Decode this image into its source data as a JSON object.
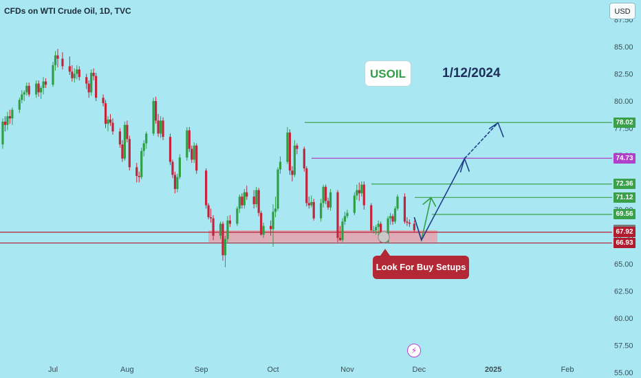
{
  "header": {
    "title": "CFDs on WTI Crude Oil, 1D, TVC",
    "currency_button": "USD"
  },
  "annotations": {
    "symbol": "USOIL",
    "date": "1/12/2024",
    "callout": "Look For Buy Setups",
    "icon": "lightning-icon"
  },
  "colors": {
    "background": "#a9e8f2",
    "up_candle": "#2f9e44",
    "down_candle": "#c2253a",
    "green_level": "#3aa04a",
    "purple_level": "#b23fc9",
    "dark_red_level": "#b31c2e",
    "gray_tag": "#777777",
    "navy": "#1e3d8a",
    "zone": "#e8a0ad"
  },
  "chart_data": {
    "type": "candlestick",
    "x_ticks": [
      "Jul",
      "Aug",
      "Sep",
      "Oct",
      "Nov",
      "Dec",
      "2025",
      "Feb"
    ],
    "y_ticks": [
      "55.00",
      "57.50",
      "60.00",
      "62.50",
      "65.00",
      "67.50",
      "70.00",
      "72.50",
      "75.00",
      "77.50",
      "80.00",
      "82.50",
      "85.00",
      "87.50"
    ],
    "ylim": [
      54.5,
      89.3
    ],
    "price_levels": [
      {
        "label": "78.02",
        "value": 78.02,
        "color": "green"
      },
      {
        "label": "74.73",
        "value": 74.73,
        "color": "purple"
      },
      {
        "label": "72.36",
        "value": 72.36,
        "color": "green"
      },
      {
        "label": "71.12",
        "value": 71.12,
        "color": "green"
      },
      {
        "label": "69.56",
        "value": 69.56,
        "color": "green"
      },
      {
        "label": "68.11",
        "value": 68.11,
        "color": "gray"
      },
      {
        "label": "67.92",
        "value": 67.92,
        "color": "dark_red"
      },
      {
        "label": "66.93",
        "value": 66.93,
        "color": "dark_red"
      }
    ],
    "support_zone": [
      67.0,
      68.1
    ],
    "projection": [
      {
        "date": "2024-11-29",
        "price": 69.3
      },
      {
        "date": "2024-12-02",
        "price": 67.2
      },
      {
        "date": "2024-12-06",
        "price": 71.1
      },
      {
        "date": "2024-12-20",
        "price": 74.7
      },
      {
        "date": "2025-01-03",
        "price": 78.0
      }
    ],
    "candles": [
      [
        "2024-06-10",
        76.0,
        78.4,
        75.6,
        78.1
      ],
      [
        "2024-06-11",
        78.1,
        78.6,
        77.2,
        77.8
      ],
      [
        "2024-06-12",
        77.8,
        79.0,
        77.3,
        78.6
      ],
      [
        "2024-06-13",
        78.6,
        79.2,
        77.9,
        78.4
      ],
      [
        "2024-06-14",
        78.4,
        79.4,
        77.8,
        79.2
      ],
      [
        "2024-06-17",
        79.2,
        80.3,
        78.9,
        80.1
      ],
      [
        "2024-06-18",
        80.1,
        81.0,
        79.8,
        80.6
      ],
      [
        "2024-06-19",
        80.6,
        81.0,
        80.0,
        80.8
      ],
      [
        "2024-06-20",
        80.8,
        81.7,
        80.5,
        81.4
      ],
      [
        "2024-06-21",
        81.4,
        81.7,
        80.4,
        80.6
      ],
      [
        "2024-06-24",
        80.6,
        81.9,
        80.3,
        81.6
      ],
      [
        "2024-06-25",
        81.6,
        81.9,
        80.4,
        80.8
      ],
      [
        "2024-06-26",
        80.8,
        81.4,
        80.2,
        81.2
      ],
      [
        "2024-06-27",
        81.2,
        82.2,
        80.6,
        81.8
      ],
      [
        "2024-06-28",
        81.8,
        82.1,
        81.2,
        81.5
      ],
      [
        "2024-07-01",
        81.5,
        83.6,
        81.3,
        83.3
      ],
      [
        "2024-07-02",
        83.3,
        84.6,
        82.8,
        84.2
      ],
      [
        "2024-07-03",
        84.2,
        84.8,
        83.1,
        83.9
      ],
      [
        "2024-07-05",
        83.9,
        84.5,
        82.9,
        83.2
      ],
      [
        "2024-07-08",
        83.2,
        84.1,
        82.4,
        82.7
      ],
      [
        "2024-07-09",
        82.7,
        83.3,
        81.8,
        82.1
      ],
      [
        "2024-07-10",
        82.1,
        83.0,
        81.7,
        82.5
      ],
      [
        "2024-07-11",
        82.5,
        83.3,
        82.0,
        82.9
      ],
      [
        "2024-07-12",
        82.9,
        83.2,
        81.9,
        82.2
      ],
      [
        "2024-07-15",
        82.2,
        82.5,
        81.1,
        81.6
      ],
      [
        "2024-07-16",
        81.6,
        81.9,
        80.3,
        80.8
      ],
      [
        "2024-07-17",
        80.8,
        82.9,
        80.5,
        82.6
      ],
      [
        "2024-07-18",
        82.6,
        83.0,
        81.9,
        82.3
      ],
      [
        "2024-07-19",
        82.3,
        82.6,
        80.0,
        80.3
      ],
      [
        "2024-07-22",
        80.3,
        80.6,
        79.5,
        79.8
      ],
      [
        "2024-07-23",
        79.8,
        80.1,
        77.5,
        77.9
      ],
      [
        "2024-07-24",
        77.9,
        78.6,
        77.2,
        78.3
      ],
      [
        "2024-07-25",
        78.3,
        78.8,
        77.7,
        78.0
      ],
      [
        "2024-07-26",
        78.0,
        78.4,
        76.9,
        77.2
      ],
      [
        "2024-07-29",
        77.2,
        77.5,
        75.7,
        76.0
      ],
      [
        "2024-07-30",
        76.0,
        76.4,
        74.4,
        74.7
      ],
      [
        "2024-07-31",
        74.7,
        78.1,
        74.5,
        77.8
      ],
      [
        "2024-08-01",
        77.8,
        78.2,
        76.2,
        76.5
      ],
      [
        "2024-08-02",
        76.5,
        76.8,
        73.6,
        73.9
      ],
      [
        "2024-08-05",
        73.9,
        74.3,
        72.5,
        73.1
      ],
      [
        "2024-08-06",
        73.1,
        73.5,
        72.5,
        73.0
      ],
      [
        "2024-08-07",
        73.0,
        75.7,
        72.8,
        75.4
      ],
      [
        "2024-08-08",
        75.4,
        76.4,
        74.9,
        76.1
      ],
      [
        "2024-08-09",
        76.1,
        77.2,
        75.6,
        77.0
      ],
      [
        "2024-08-12",
        77.0,
        80.3,
        76.8,
        80.0
      ],
      [
        "2024-08-13",
        80.0,
        80.4,
        77.9,
        78.2
      ],
      [
        "2024-08-14",
        78.2,
        78.8,
        76.7,
        77.0
      ],
      [
        "2024-08-15",
        77.0,
        78.6,
        76.6,
        78.2
      ],
      [
        "2024-08-16",
        78.2,
        78.5,
        76.4,
        76.7
      ],
      [
        "2024-08-19",
        76.7,
        77.0,
        74.1,
        74.4
      ],
      [
        "2024-08-20",
        74.4,
        74.6,
        72.9,
        73.2
      ],
      [
        "2024-08-21",
        73.2,
        73.5,
        71.5,
        71.9
      ],
      [
        "2024-08-22",
        71.9,
        73.3,
        71.6,
        73.0
      ],
      [
        "2024-08-23",
        73.0,
        75.1,
        72.8,
        74.8
      ],
      [
        "2024-08-26",
        74.8,
        77.6,
        74.5,
        77.3
      ],
      [
        "2024-08-27",
        77.3,
        77.6,
        75.3,
        75.6
      ],
      [
        "2024-08-28",
        75.6,
        75.9,
        74.3,
        74.6
      ],
      [
        "2024-08-29",
        74.6,
        76.2,
        74.3,
        75.9
      ],
      [
        "2024-08-30",
        75.9,
        76.1,
        73.3,
        73.6
      ],
      [
        "2024-09-03",
        73.6,
        73.8,
        70.1,
        70.4
      ],
      [
        "2024-09-04",
        70.4,
        70.6,
        69.1,
        69.3
      ],
      [
        "2024-09-05",
        69.3,
        70.1,
        68.8,
        69.2
      ],
      [
        "2024-09-06",
        69.2,
        69.5,
        67.2,
        67.6
      ],
      [
        "2024-09-09",
        67.6,
        68.9,
        67.3,
        68.7
      ],
      [
        "2024-09-10",
        68.7,
        68.9,
        65.3,
        65.8
      ],
      [
        "2024-09-11",
        65.8,
        67.6,
        64.7,
        67.3
      ],
      [
        "2024-09-12",
        67.3,
        69.4,
        67.0,
        69.0
      ],
      [
        "2024-09-13",
        69.0,
        69.5,
        68.4,
        68.7
      ],
      [
        "2024-09-16",
        68.7,
        70.3,
        68.5,
        70.1
      ],
      [
        "2024-09-17",
        70.1,
        71.4,
        69.7,
        71.2
      ],
      [
        "2024-09-18",
        71.2,
        71.5,
        70.1,
        70.4
      ],
      [
        "2024-09-19",
        70.4,
        71.9,
        70.1,
        71.6
      ],
      [
        "2024-09-20",
        71.6,
        72.2,
        70.9,
        71.2
      ],
      [
        "2024-09-23",
        71.2,
        71.8,
        70.1,
        70.5
      ],
      [
        "2024-09-24",
        70.5,
        72.1,
        70.2,
        71.8
      ],
      [
        "2024-09-25",
        71.8,
        72.0,
        69.4,
        69.7
      ],
      [
        "2024-09-26",
        69.7,
        69.9,
        67.6,
        67.7
      ],
      [
        "2024-09-27",
        67.7,
        68.8,
        67.4,
        68.5
      ],
      [
        "2024-09-30",
        68.5,
        69.0,
        67.6,
        68.2
      ],
      [
        "2024-10-01",
        68.2,
        70.5,
        66.6,
        69.8
      ],
      [
        "2024-10-02",
        69.8,
        71.2,
        69.3,
        70.1
      ],
      [
        "2024-10-03",
        70.1,
        73.9,
        69.9,
        73.7
      ],
      [
        "2024-10-04",
        73.7,
        74.9,
        73.3,
        74.4
      ],
      [
        "2024-10-07",
        74.4,
        77.6,
        74.2,
        77.1
      ],
      [
        "2024-10-08",
        77.1,
        77.4,
        73.2,
        73.6
      ],
      [
        "2024-10-09",
        73.6,
        74.0,
        72.6,
        73.2
      ],
      [
        "2024-10-10",
        73.2,
        76.4,
        73.0,
        75.9
      ],
      [
        "2024-10-11",
        75.9,
        76.1,
        75.1,
        75.6
      ],
      [
        "2024-10-14",
        75.6,
        75.8,
        73.5,
        73.8
      ],
      [
        "2024-10-15",
        73.8,
        74.0,
        70.3,
        70.6
      ],
      [
        "2024-10-16",
        70.6,
        71.2,
        70.1,
        70.4
      ],
      [
        "2024-10-17",
        70.4,
        71.3,
        70.2,
        70.7
      ],
      [
        "2024-10-18",
        70.7,
        71.0,
        69.0,
        69.2
      ],
      [
        "2024-10-21",
        69.2,
        71.0,
        68.9,
        70.6
      ],
      [
        "2024-10-22",
        70.6,
        72.3,
        70.2,
        72.1
      ],
      [
        "2024-10-23",
        72.1,
        72.3,
        70.5,
        70.8
      ],
      [
        "2024-10-24",
        70.8,
        71.1,
        70.0,
        70.2
      ],
      [
        "2024-10-25",
        70.2,
        71.9,
        69.9,
        71.6
      ],
      [
        "2024-10-28",
        71.6,
        71.8,
        67.0,
        67.4
      ],
      [
        "2024-10-29",
        67.4,
        68.5,
        67.1,
        67.2
      ],
      [
        "2024-10-30",
        67.2,
        69.2,
        67.0,
        68.9
      ],
      [
        "2024-10-31",
        68.9,
        69.8,
        68.6,
        69.4
      ],
      [
        "2024-11-01",
        69.4,
        70.0,
        69.2,
        69.7
      ],
      [
        "2024-11-04",
        69.7,
        71.6,
        69.5,
        71.3
      ],
      [
        "2024-11-05",
        71.3,
        72.3,
        70.9,
        71.8
      ],
      [
        "2024-11-06",
        71.8,
        72.5,
        70.8,
        71.5
      ],
      [
        "2024-11-07",
        71.5,
        72.6,
        71.2,
        72.3
      ],
      [
        "2024-11-08",
        72.3,
        72.6,
        70.0,
        70.4
      ],
      [
        "2024-11-11",
        70.4,
        70.6,
        68.0,
        68.1
      ],
      [
        "2024-11-12",
        68.1,
        68.5,
        67.8,
        68.1
      ],
      [
        "2024-11-13",
        68.1,
        68.6,
        67.7,
        68.4
      ],
      [
        "2024-11-14",
        68.4,
        69.0,
        67.6,
        68.7
      ],
      [
        "2024-11-15",
        68.7,
        68.9,
        66.9,
        67.0
      ],
      [
        "2024-11-18",
        67.0,
        69.4,
        66.9,
        69.2
      ],
      [
        "2024-11-19",
        69.2,
        69.7,
        68.6,
        69.4
      ],
      [
        "2024-11-20",
        69.4,
        69.6,
        68.6,
        68.9
      ],
      [
        "2024-11-21",
        68.9,
        70.3,
        68.7,
        70.1
      ],
      [
        "2024-11-22",
        70.1,
        71.4,
        69.9,
        71.2
      ],
      [
        "2024-11-25",
        71.2,
        71.5,
        68.7,
        68.9
      ],
      [
        "2024-11-26",
        68.9,
        69.3,
        68.5,
        68.8
      ],
      [
        "2024-11-27",
        68.8,
        69.1,
        68.4,
        68.7
      ],
      [
        "2024-11-29",
        68.7,
        69.0,
        67.9,
        68.1
      ]
    ]
  }
}
